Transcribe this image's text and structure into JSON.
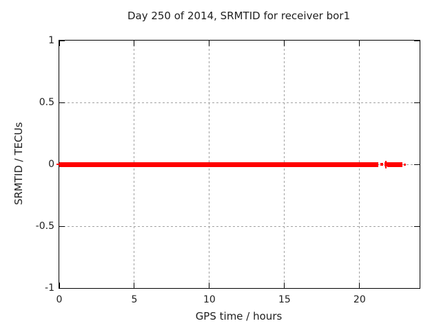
{
  "window": {
    "background": "#ffffff"
  },
  "chart_data": {
    "type": "scatter",
    "title": "Day 250 of 2014, SRMTID for receiver bor1",
    "xlabel": "GPS time / hours",
    "ylabel": "SRMTID / TECUs",
    "xlim": [
      0,
      24
    ],
    "ylim": [
      -1,
      1
    ],
    "xticks": [
      0,
      5,
      10,
      15,
      20
    ],
    "yticks": [
      1,
      0.5,
      0,
      -0.5,
      -1
    ],
    "grid": true,
    "legend": "none",
    "axis_color": "#000000",
    "grid_color": "#a0a0a0",
    "text_color": "#202020",
    "series": [
      {
        "name": "SRMTID",
        "color": "#ff0000",
        "marker": "plus",
        "y_value": 0,
        "coverage_segments_hours": [
          {
            "x0": 0.0,
            "x1": 21.24,
            "thickness_px": 7
          },
          {
            "x0": 21.4,
            "x1": 21.58,
            "thickness_px": 4
          },
          {
            "x0": 21.67,
            "x1": 21.86,
            "thickness_px": 6
          },
          {
            "x0": 21.86,
            "x1": 22.86,
            "thickness_px": 7
          },
          {
            "x0": 22.95,
            "x1": 23.07,
            "thickness_px": 3
          }
        ],
        "isolated_plus_marker_x": 21.77,
        "left_marker_arm_hours": {
          "x0": -0.18,
          "x1": 0.0,
          "thickness_px": 2
        }
      }
    ]
  }
}
